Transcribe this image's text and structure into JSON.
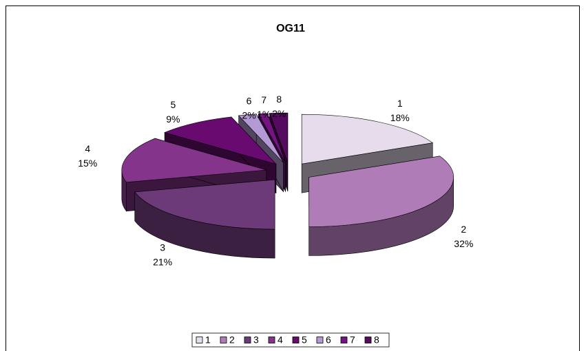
{
  "chart_data": {
    "type": "pie",
    "title": "OG11",
    "categories": [
      "1",
      "2",
      "3",
      "4",
      "5",
      "6",
      "7",
      "8"
    ],
    "values": [
      18,
      32,
      21,
      15,
      9,
      2,
      1,
      2
    ],
    "value_labels": [
      "18%",
      "32%",
      "21%",
      "15%",
      "9%",
      "2%",
      "1%",
      "2%"
    ],
    "colors": [
      "#e6dcec",
      "#b07cb8",
      "#6c3a78",
      "#84348a",
      "#680a70",
      "#b49ad4",
      "#741480",
      "#560a60"
    ],
    "legend": "bottom"
  }
}
